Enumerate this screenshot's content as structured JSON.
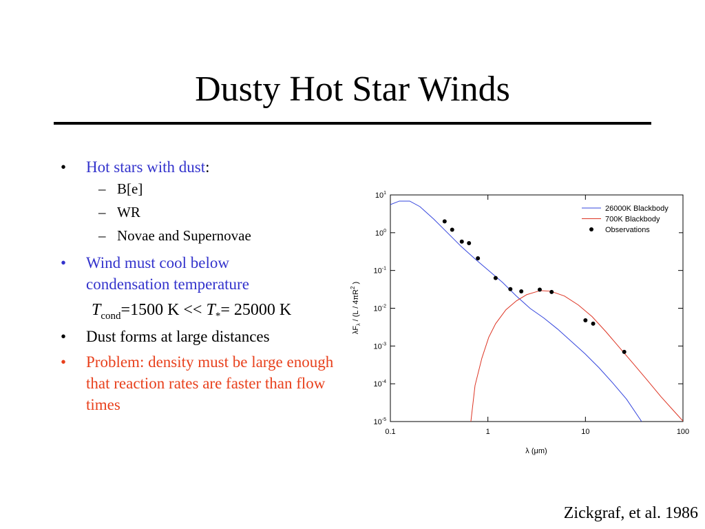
{
  "slide": {
    "title": "Dusty Hot Star Winds",
    "bullet1": {
      "highlight": "Hot stars with dust",
      "rest": ":"
    },
    "sub_items": [
      "B[e]",
      "WR",
      "Novae and Supernovae"
    ],
    "bullet2": "Wind must cool below condensation temperature",
    "equation": {
      "t1": "T",
      "sub1": "cond",
      "mid": "=1500 K << ",
      "t2": "T",
      "sub2": "*",
      "end": "= 25000 K"
    },
    "bullet3": "Dust forms at large distances",
    "bullet4": "Problem: density must be large enough that reaction rates are faster than flow times",
    "citation": "Zickgraf, et al. 1986"
  },
  "chart_data": {
    "type": "line",
    "xscale": "log",
    "yscale": "log",
    "x_label": "λ (μm)",
    "y_label": {
      "main": "λF",
      "sub": "λ",
      "mid": " / (L / 4πR",
      "sup": "2",
      "end": " )"
    },
    "xlim": [
      0.1,
      100
    ],
    "xticks": [
      0.1,
      1,
      10,
      100
    ],
    "ylim": [
      1e-05,
      10
    ],
    "yticks": [
      {
        "value": 10,
        "label": "10",
        "exponent": "1"
      },
      {
        "value": 1,
        "label": "10",
        "exponent": "0"
      },
      {
        "value": 0.1,
        "label": "10",
        "exponent": "-1"
      },
      {
        "value": 0.01,
        "label": "10",
        "exponent": "-2"
      },
      {
        "value": 0.001,
        "label": "10",
        "exponent": "-3"
      },
      {
        "value": 0.0001,
        "label": "10",
        "exponent": "-4"
      },
      {
        "value": 1e-05,
        "label": "10",
        "exponent": "-5"
      }
    ],
    "grid": false,
    "legend": "upper right",
    "series": [
      {
        "name": "26000K Blackbody",
        "color": "#3344dd",
        "kind": "line",
        "x": [
          0.1,
          0.1235,
          0.158,
          0.201,
          0.278,
          0.385,
          0.533,
          0.738,
          1.02,
          1.41,
          1.96,
          2.71,
          3.75,
          5.19,
          7.18,
          9.93,
          13.7,
          19.0,
          26.4,
          37.7
        ],
        "values": [
          5.56,
          6.86,
          6.86,
          4.9,
          2.3,
          0.995,
          0.43,
          0.202,
          0.099,
          0.0486,
          0.021,
          0.0099,
          0.0055,
          0.0028,
          0.00132,
          0.00062,
          0.00027,
          0.000106,
          3.9e-05,
          1e-05
        ]
      },
      {
        "name": "700K Blackbody",
        "color": "#dd3322",
        "kind": "line",
        "x": [
          0.669,
          0.738,
          0.868,
          1.02,
          1.2,
          1.53,
          1.96,
          2.5,
          3.45,
          4.41,
          6.1,
          8.45,
          11.7,
          16.2,
          22.4,
          31.0,
          42.9,
          59.3,
          82.2,
          100
        ],
        "values": [
          1e-05,
          9e-05,
          0.00048,
          0.0017,
          0.0039,
          0.0091,
          0.0157,
          0.0229,
          0.0294,
          0.0282,
          0.021,
          0.0122,
          0.006,
          0.0024,
          0.0009,
          0.00034,
          0.000126,
          4.6e-05,
          1.8e-05,
          1.03e-05
        ]
      },
      {
        "name": "Observations",
        "color": "#000000",
        "kind": "scatter",
        "x": [
          0.36,
          0.43,
          0.54,
          0.64,
          0.79,
          1.2,
          1.7,
          2.2,
          3.4,
          4.5,
          10,
          12,
          25
        ],
        "values": [
          2.0,
          1.2,
          0.58,
          0.53,
          0.21,
          0.063,
          0.032,
          0.028,
          0.031,
          0.027,
          0.0048,
          0.0039,
          0.0007
        ]
      }
    ]
  }
}
